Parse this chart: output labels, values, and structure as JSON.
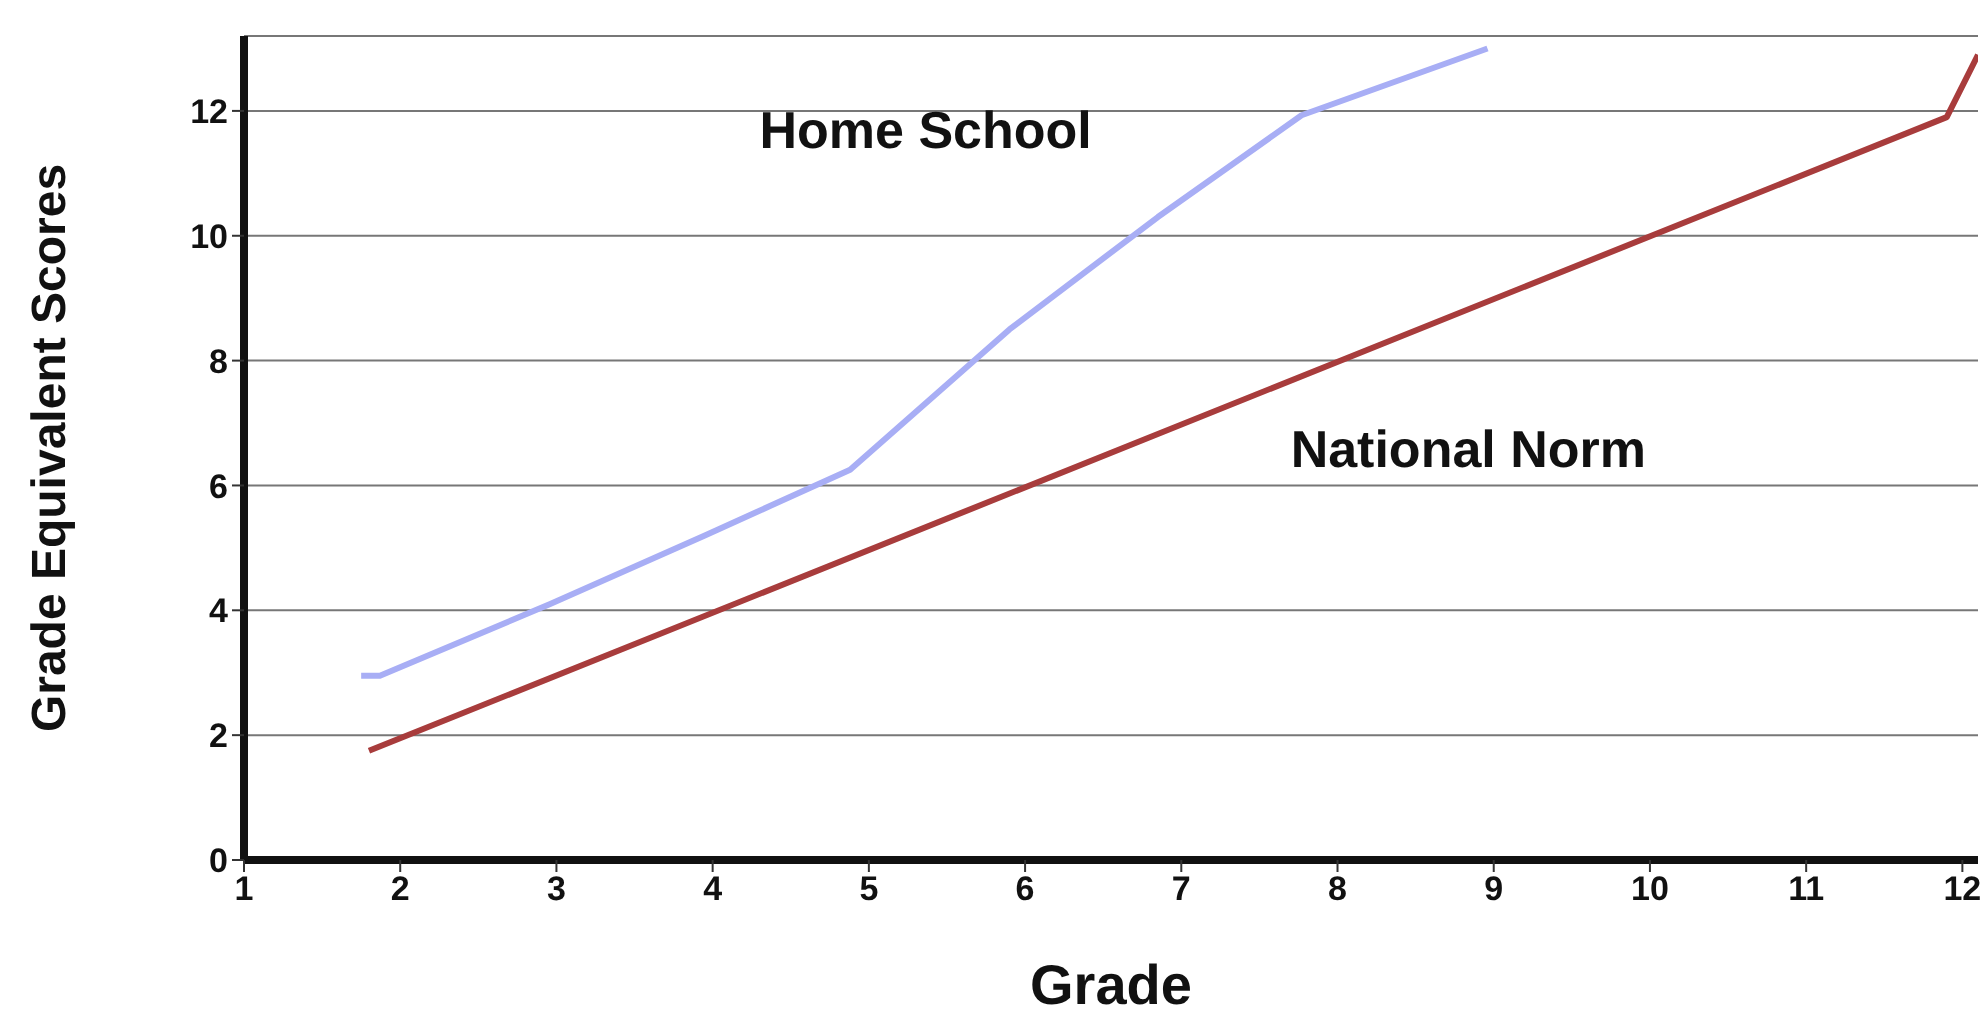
{
  "chart_data": {
    "type": "line",
    "xlabel": "Grade",
    "ylabel": "Grade Equivalent Scores",
    "xlim": [
      1,
      12.1
    ],
    "xticks": [
      1,
      2,
      3,
      4,
      5,
      6,
      7,
      8,
      9,
      10,
      11,
      12
    ],
    "ylim": [
      0,
      13.2
    ],
    "yticks": [
      0,
      2,
      4,
      6,
      8,
      10,
      12
    ],
    "grid": "y",
    "marker": "none",
    "series": [
      {
        "name": "Home School",
        "color": "#a8aef5",
        "x": [
          1.75,
          1.87,
          2.96,
          3.95,
          4.88,
          5.9,
          6.85,
          7.77,
          8.96
        ],
        "values": [
          2.95,
          2.95,
          4.1,
          5.2,
          6.25,
          8.5,
          10.3,
          11.93,
          13.0
        ]
      },
      {
        "name": "National Norm",
        "color": "#a83c3c",
        "x": [
          1.8,
          11.9,
          12.1
        ],
        "values": [
          1.75,
          11.9,
          12.9
        ]
      }
    ]
  }
}
